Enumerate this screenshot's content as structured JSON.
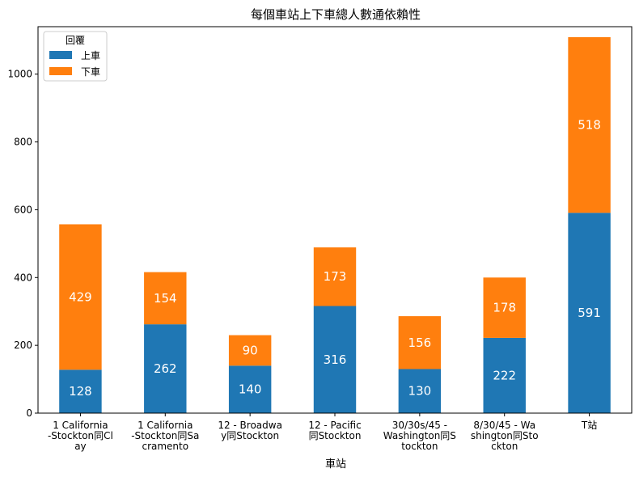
{
  "chart_data": {
    "type": "bar",
    "stacked": true,
    "title": "每個車站上下車總人數通依賴性",
    "xlabel": "車站",
    "ylabel": "",
    "ylim": [
      0,
      1140
    ],
    "yticks": [
      0,
      200,
      400,
      600,
      800,
      1000
    ],
    "categories": [
      [
        "1 California",
        "-Stockton同Cl",
        "ay"
      ],
      [
        "1 California",
        "-Stockton同Sa",
        "cramento"
      ],
      [
        "12 - Broadwa",
        "y同Stockton"
      ],
      [
        "12 - Pacific",
        "同Stockton"
      ],
      [
        "30/30s/45 -",
        "Washington同S",
        "tockton"
      ],
      [
        "8/30/45 - Wa",
        "shington同Sto",
        "ckton"
      ],
      [
        "T站"
      ]
    ],
    "series": [
      {
        "name": "上車",
        "color": "#1f77b4",
        "values": [
          128,
          262,
          140,
          316,
          130,
          222,
          591
        ]
      },
      {
        "name": "下車",
        "color": "#ff7f0e",
        "values": [
          429,
          154,
          90,
          173,
          156,
          178,
          518
        ]
      }
    ],
    "legend": {
      "title": "回覆",
      "position": "top-left"
    }
  }
}
